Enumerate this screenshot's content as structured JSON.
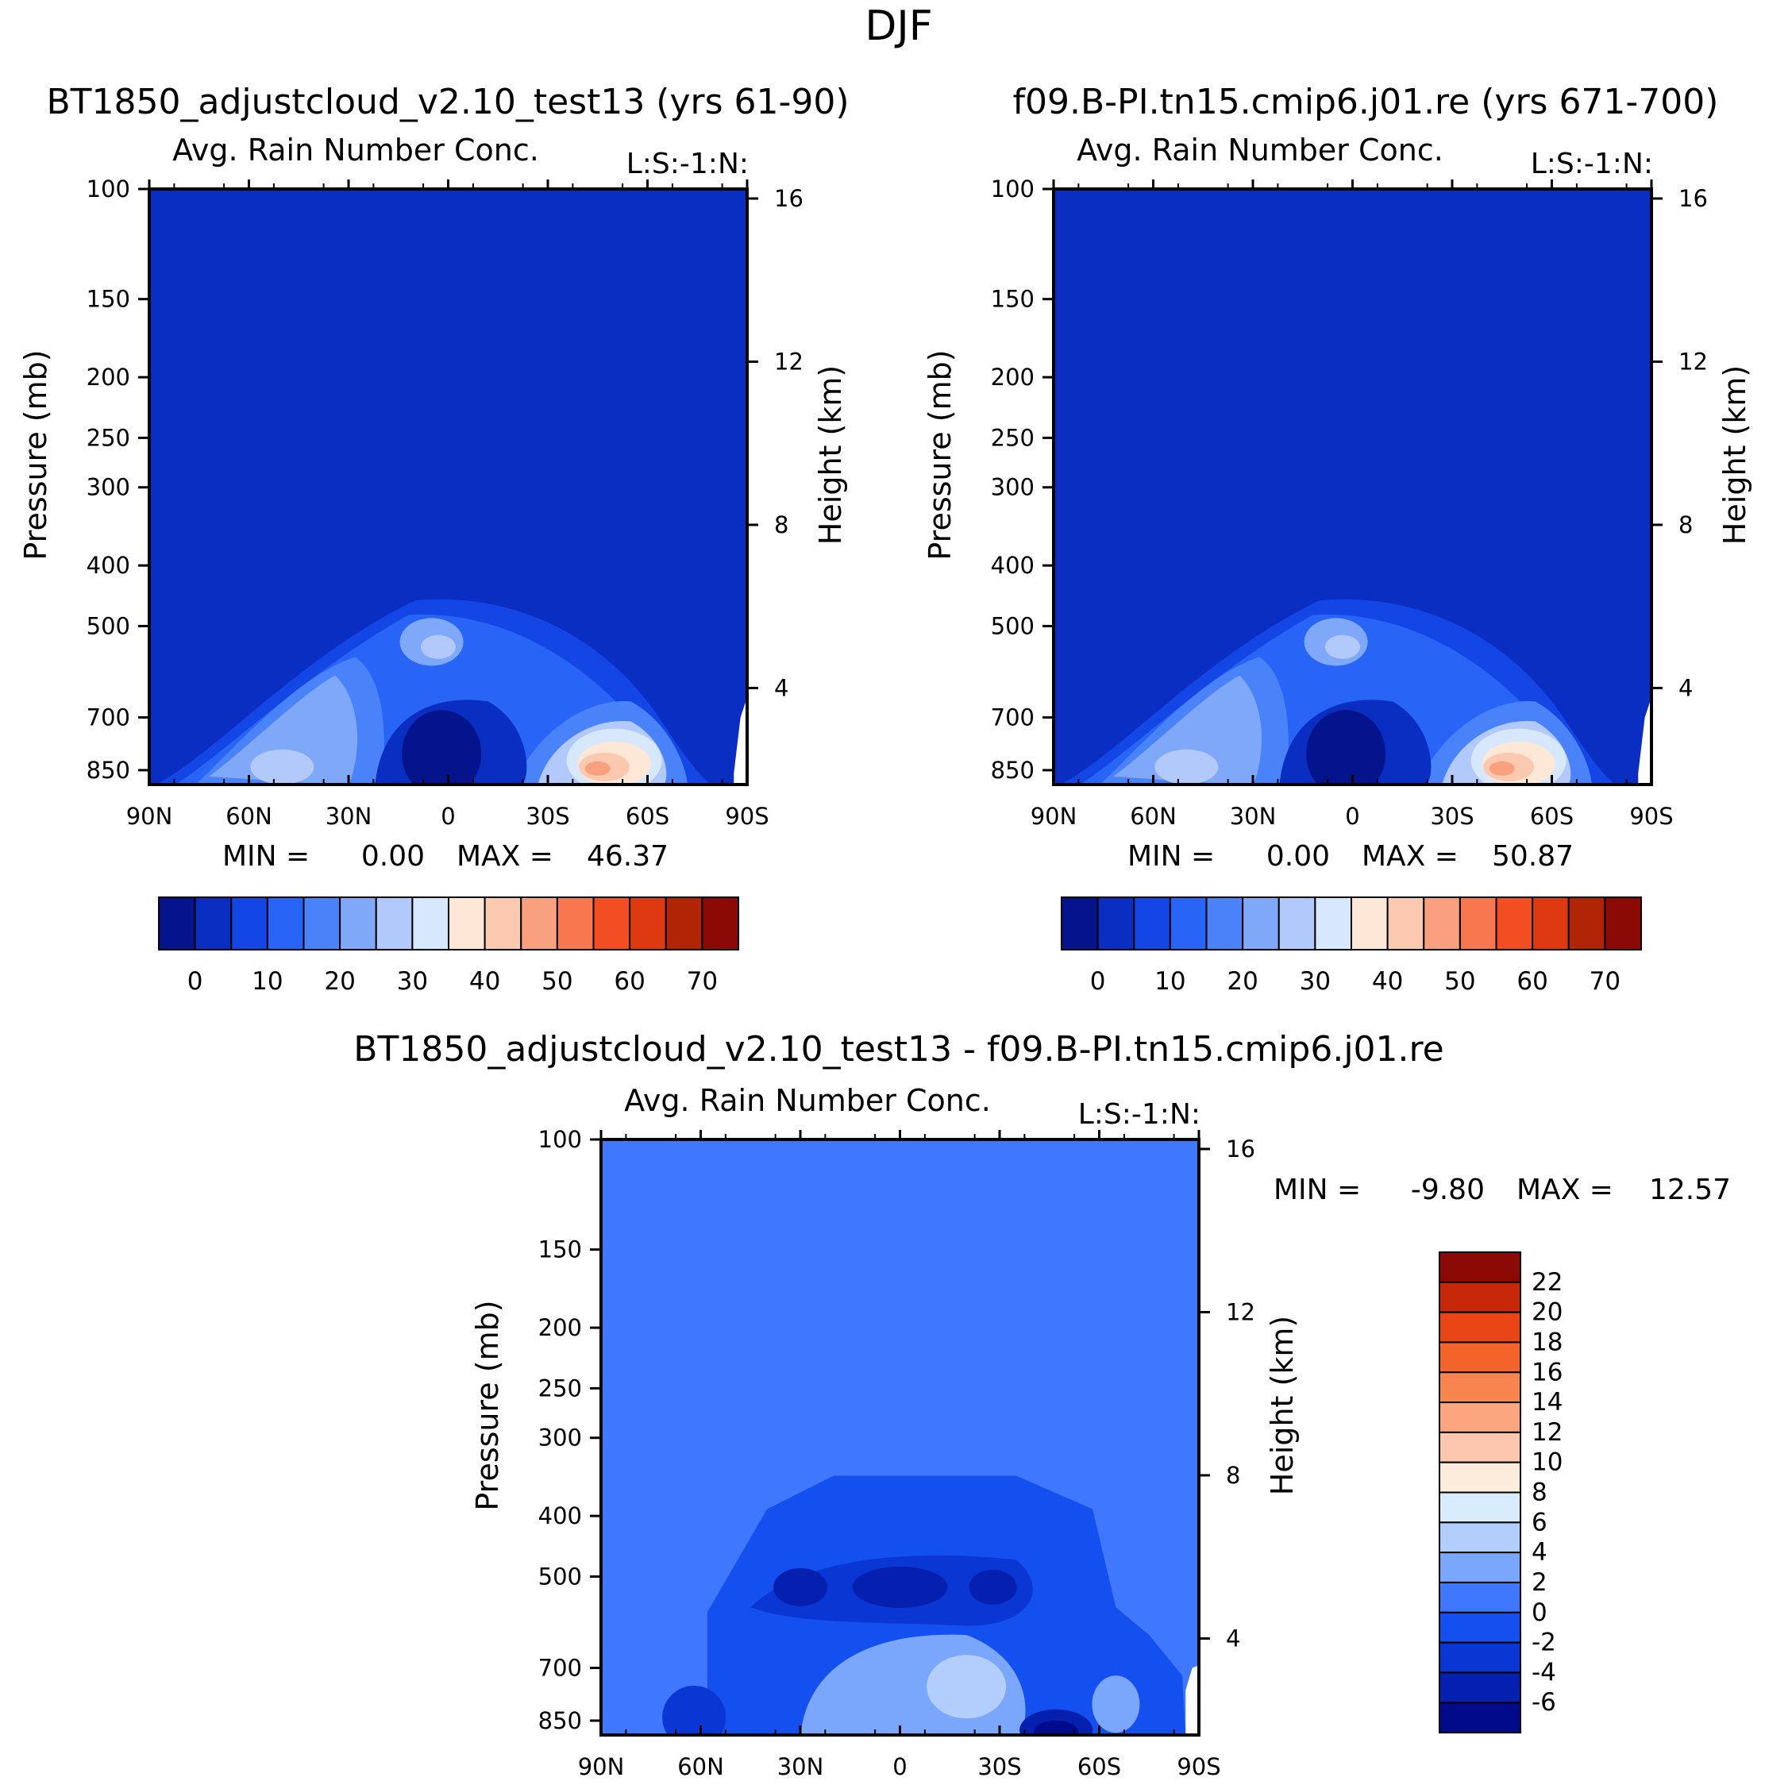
{
  "figure_title": "DJF",
  "panels": [
    {
      "run_title": "BT1850_adjustcloud_v2.10_test13 (yrs 61-90)",
      "subtitle": "Avg. Rain Number Conc.",
      "corner_label": "L:S:-1:N:",
      "min_label": "MIN =",
      "min_value": "0.00",
      "max_label": "MAX =",
      "max_value": "46.37"
    },
    {
      "run_title": "f09.B-PI.tn15.cmip6.j01.re (yrs 671-700)",
      "subtitle": "Avg. Rain Number Conc.",
      "corner_label": "L:S:-1:N:",
      "min_label": "MIN =",
      "min_value": "0.00",
      "max_label": "MAX =",
      "max_value": "50.87"
    },
    {
      "run_title": "BT1850_adjustcloud_v2.10_test13 - f09.B-PI.tn15.cmip6.j01.re",
      "subtitle": "Avg. Rain Number Conc.",
      "corner_label": "L:S:-1:N:",
      "min_label": "MIN =",
      "min_value": "-9.80",
      "max_label": "MAX =",
      "max_value": "12.57"
    }
  ],
  "chart_data": [
    {
      "type": "heatmap",
      "title": "Avg. Rain Number Conc.",
      "xlabel": "",
      "ylabel": "Pressure (mb)",
      "y2label": "Height (km)",
      "x_ticks": [
        "90N",
        "60N",
        "30N",
        "0",
        "30S",
        "60S",
        "90S"
      ],
      "x_range": [
        90,
        -90
      ],
      "y_ticks": [
        100,
        150,
        200,
        250,
        300,
        400,
        500,
        700,
        850
      ],
      "y_range": [
        100,
        1000
      ],
      "y_scale": "log",
      "y2_ticks": [
        16,
        12,
        8,
        4
      ],
      "colorbar": {
        "orientation": "horizontal",
        "levels": [
          0,
          5,
          10,
          15,
          20,
          25,
          30,
          35,
          40,
          45,
          50,
          55,
          60,
          65,
          70
        ],
        "labels": [
          "0",
          "10",
          "20",
          "30",
          "40",
          "50",
          "60",
          "70"
        ]
      },
      "min": 0.0,
      "max": 46.37,
      "features": [
        {
          "lat": 40,
          "p": 550,
          "value": 18
        },
        {
          "lat": 67,
          "p": 820,
          "value": 15
        },
        {
          "lat": 5,
          "p": 790,
          "value": 2
        },
        {
          "lat": -47,
          "p": 840,
          "value": 46
        },
        {
          "lat": -55,
          "p": 800,
          "value": 35
        }
      ]
    },
    {
      "type": "heatmap",
      "title": "Avg. Rain Number Conc.",
      "xlabel": "",
      "ylabel": "Pressure (mb)",
      "y2label": "Height (km)",
      "x_ticks": [
        "90N",
        "60N",
        "30N",
        "0",
        "30S",
        "60S",
        "90S"
      ],
      "x_range": [
        90,
        -90
      ],
      "y_ticks": [
        100,
        150,
        200,
        250,
        300,
        400,
        500,
        700,
        850
      ],
      "y_range": [
        100,
        1000
      ],
      "y_scale": "log",
      "y2_ticks": [
        16,
        12,
        8,
        4
      ],
      "colorbar": {
        "orientation": "horizontal",
        "levels": [
          0,
          5,
          10,
          15,
          20,
          25,
          30,
          35,
          40,
          45,
          50,
          55,
          60,
          65,
          70
        ],
        "labels": [
          "0",
          "10",
          "20",
          "30",
          "40",
          "50",
          "60",
          "70"
        ]
      },
      "min": 0.0,
      "max": 50.87,
      "features": [
        {
          "lat": 2,
          "p": 560,
          "value": 32
        },
        {
          "lat": 60,
          "p": 810,
          "value": 28
        },
        {
          "lat": -42,
          "p": 840,
          "value": 50
        },
        {
          "lat": -55,
          "p": 790,
          "value": 37
        }
      ]
    },
    {
      "type": "heatmap",
      "title": "Avg. Rain Number Conc.",
      "xlabel": "",
      "ylabel": "Pressure (mb)",
      "y2label": "Height (km)",
      "x_ticks": [
        "90N",
        "60N",
        "30N",
        "0",
        "30S",
        "60S",
        "90S"
      ],
      "x_range": [
        90,
        -90
      ],
      "y_ticks": [
        100,
        150,
        200,
        250,
        300,
        400,
        500,
        700,
        850
      ],
      "y_range": [
        100,
        1000
      ],
      "y_scale": "log",
      "y2_ticks": [
        16,
        12,
        8,
        4
      ],
      "colorbar": {
        "orientation": "vertical",
        "levels": [
          -8,
          -6,
          -4,
          -2,
          0,
          2,
          4,
          6,
          8,
          10,
          12,
          14,
          16,
          18,
          20,
          22,
          24
        ],
        "labels": [
          "-6",
          "-4",
          "-2",
          "0",
          "2",
          "4",
          "6",
          "8",
          "10",
          "12",
          "14",
          "16",
          "18",
          "20",
          "22"
        ]
      },
      "min": -9.8,
      "max": 12.57,
      "features": [
        {
          "lat": -47,
          "p": 870,
          "value": -9.8
        },
        {
          "lat": 0,
          "p": 520,
          "value": -8
        },
        {
          "lat": -20,
          "p": 750,
          "value": 7
        }
      ]
    }
  ],
  "colors": {
    "panel_background_abs": "#0a2dc2",
    "panel_background_diff": "#3f78ff",
    "abs_palette": [
      "#05148c",
      "#0a2dc2",
      "#1446e6",
      "#2864f5",
      "#4a82fa",
      "#80a8f8",
      "#b2c9fb",
      "#d8e8fc",
      "#fde8d8",
      "#fbc8b0",
      "#f9a07e",
      "#f7784f",
      "#f24e22",
      "#de3a12",
      "#b22406",
      "#8c0a06"
    ],
    "diff_palette": [
      "#000a8a",
      "#0520ae",
      "#0a37d4",
      "#1450f0",
      "#3f78ff",
      "#7aa6fb",
      "#b3cdfc",
      "#d9ecfd",
      "#fdebdb",
      "#fcc7ae",
      "#fba67f",
      "#f8844f",
      "#f4642a",
      "#ea4515",
      "#c8280a",
      "#8c0a06"
    ]
  }
}
